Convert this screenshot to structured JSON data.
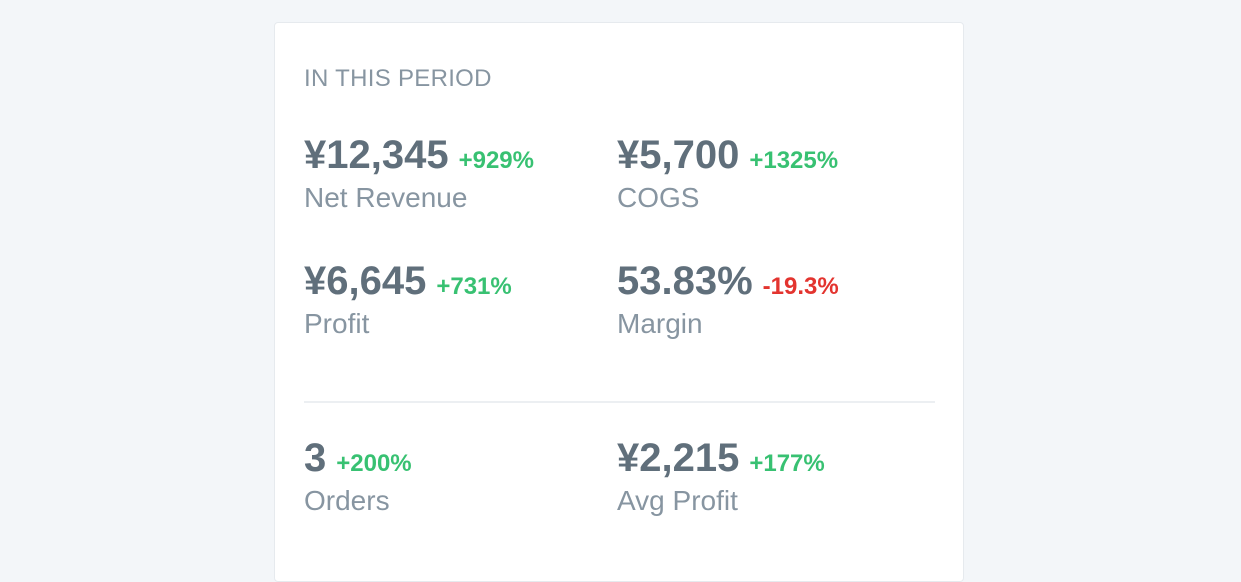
{
  "header": "IN THIS PERIOD",
  "stats": [
    {
      "value": "¥12,345",
      "change": "+929%",
      "label": "Net Revenue"
    },
    {
      "value": "¥5,700",
      "change": "+1325%",
      "label": "COGS"
    },
    {
      "value": "¥6,645",
      "change": "+731%",
      "label": "Profit"
    },
    {
      "value": "53.83%",
      "change": "-19.3%",
      "label": "Margin"
    },
    {
      "value": "3",
      "change": "+200%",
      "label": "Orders"
    },
    {
      "value": "¥2,215",
      "change": "+177%",
      "label": "Avg Profit"
    }
  ],
  "colors": {
    "up": "#38c172",
    "down": "#e3342f"
  }
}
